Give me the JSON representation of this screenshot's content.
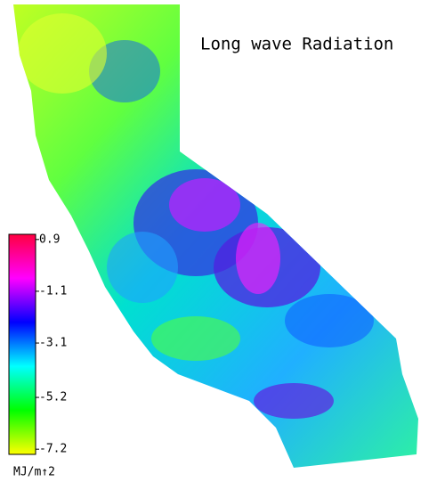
{
  "title": "Long wave Radiation",
  "colorbar": {
    "lim": [
      -7.4,
      1.1
    ],
    "ticks": [
      0.9,
      -1.1,
      -3.1,
      -5.2,
      -7.2
    ],
    "colors": [
      "#ffff00",
      "#00ff00",
      "#00ffff",
      "#0000ff",
      "#ff00ff",
      "#ff0040"
    ],
    "unit": "MJ/m↑2"
  }
}
